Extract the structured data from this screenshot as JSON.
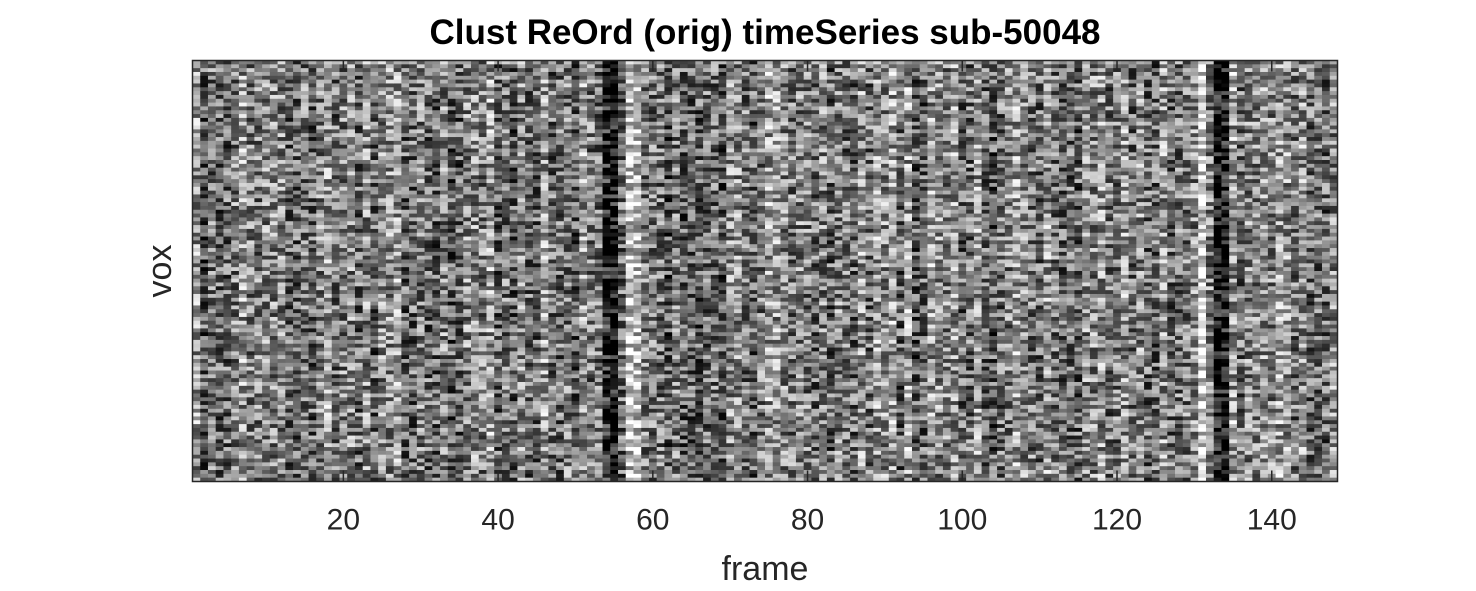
{
  "chart_data": {
    "type": "heatmap",
    "title": "Clust ReOrd (orig) timeSeries sub-50048",
    "xlabel": "frame",
    "ylabel": "vox",
    "colormap": "gray",
    "xlim": [
      0.5,
      148.5
    ],
    "x_ticks": [
      20,
      40,
      60,
      80,
      100,
      120,
      140
    ],
    "x_tick_labels": [
      "20",
      "40",
      "60",
      "80",
      "100",
      "120",
      "140"
    ],
    "y_ticks": [],
    "n_frames": 148,
    "n_voxel_rows": 110,
    "dark_frames": [
      {
        "frame": 54,
        "intensity": 0.35
      },
      {
        "frame": 55,
        "intensity": 0.45
      },
      {
        "frame": 133,
        "intensity": 0.45
      },
      {
        "frame": 134,
        "intensity": 0.3
      },
      {
        "frame": 62,
        "intensity": 0.2
      },
      {
        "frame": 81,
        "intensity": 0.15
      }
    ],
    "bright_frames": [
      {
        "frame": 57,
        "intensity": 0.2
      },
      {
        "frame": 58,
        "intensity": 0.2
      },
      {
        "frame": 131,
        "intensity": 0.3
      }
    ]
  }
}
